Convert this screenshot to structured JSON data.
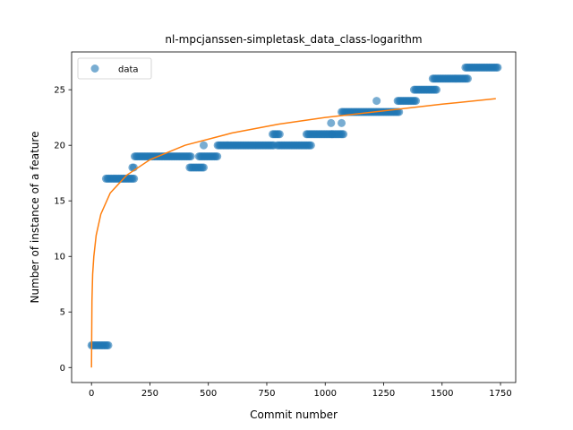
{
  "chart_data": {
    "type": "scatter",
    "title": "nl-mpcjanssen-simpletask_data_class-logarithm",
    "xlabel": "Commit number",
    "ylabel": "Number of instance of a feature",
    "xlim": [
      -85,
      1815
    ],
    "ylim": [
      -1.35,
      28.4
    ],
    "xticks": [
      0,
      250,
      500,
      750,
      1000,
      1250,
      1500,
      1750
    ],
    "yticks": [
      0,
      5,
      10,
      15,
      20,
      25
    ],
    "grid": false,
    "legend": {
      "position": "top-left",
      "entries": [
        "data"
      ]
    },
    "colors": {
      "data": "#1f77b4",
      "fit": "#ff7f0e"
    },
    "series": [
      {
        "name": "data",
        "kind": "scatter",
        "runs": [
          [
            0,
            75,
            2
          ],
          [
            62,
            185,
            17
          ],
          [
            175,
            185,
            18
          ],
          [
            185,
            430,
            19
          ],
          [
            420,
            480,
            18
          ],
          [
            460,
            540,
            19
          ],
          [
            540,
            780,
            20
          ],
          [
            775,
            810,
            21
          ],
          [
            795,
            940,
            20
          ],
          [
            920,
            1030,
            21
          ],
          [
            1030,
            1080,
            21
          ],
          [
            1070,
            1320,
            23
          ],
          [
            1310,
            1390,
            24
          ],
          [
            1380,
            1480,
            25
          ],
          [
            1460,
            1610,
            26
          ],
          [
            1600,
            1740,
            27
          ]
        ],
        "singles": [
          [
            480,
            20
          ],
          [
            1025,
            22
          ],
          [
            1070,
            22
          ],
          [
            1220,
            24
          ]
        ]
      },
      {
        "name": "fit",
        "kind": "line",
        "function": "logarithmic",
        "x": [
          0,
          2,
          5,
          10,
          20,
          40,
          80,
          150,
          250,
          400,
          600,
          800,
          1000,
          1250,
          1500,
          1730
        ],
        "y": [
          0,
          6.0,
          8.4,
          10.0,
          11.9,
          13.8,
          15.7,
          17.3,
          18.7,
          20.0,
          21.1,
          21.9,
          22.5,
          23.1,
          23.7,
          24.2
        ]
      }
    ]
  }
}
